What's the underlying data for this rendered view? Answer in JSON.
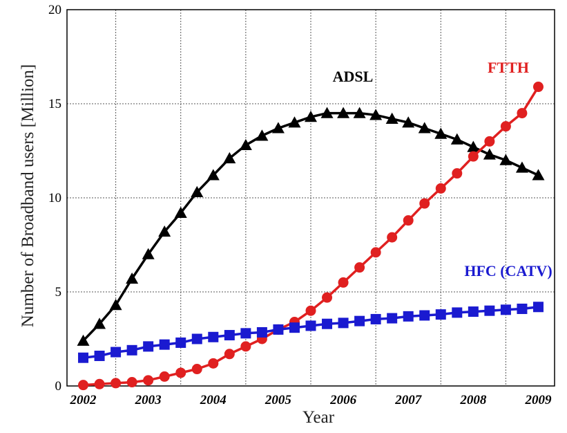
{
  "chart_data": {
    "type": "line",
    "title": "",
    "xlabel": "Year",
    "ylabel": "Number of Broadband users [Million]",
    "xlim": [
      2001.75,
      2009.25
    ],
    "ylim": [
      0,
      20
    ],
    "yticks": [
      "0",
      "5",
      "10",
      "15",
      "20"
    ],
    "xticks": [
      "2002",
      "2003",
      "2004",
      "2005",
      "2006",
      "2007",
      "2008",
      "2009"
    ],
    "grid": true,
    "series": [
      {
        "name": "ADSL",
        "color": "#000000",
        "marker": "triangle",
        "x": [
          2002.0,
          2002.25,
          2002.5,
          2002.75,
          2003.0,
          2003.25,
          2003.5,
          2003.75,
          2004.0,
          2004.25,
          2004.5,
          2004.75,
          2005.0,
          2005.25,
          2005.5,
          2005.75,
          2006.0,
          2006.25,
          2006.5,
          2006.75,
          2007.0,
          2007.25,
          2007.5,
          2007.75,
          2008.0,
          2008.25,
          2008.5,
          2008.75,
          2009.0
        ],
        "values": [
          2.4,
          3.3,
          4.3,
          5.7,
          7.0,
          8.2,
          9.2,
          10.3,
          11.2,
          12.1,
          12.8,
          13.3,
          13.7,
          14.0,
          14.3,
          14.5,
          14.5,
          14.5,
          14.4,
          14.2,
          14.0,
          13.7,
          13.4,
          13.1,
          12.7,
          12.3,
          12.0,
          11.6,
          11.2
        ]
      },
      {
        "name": "FTTH",
        "color": "#e02020",
        "marker": "circle",
        "x": [
          2002.0,
          2002.25,
          2002.5,
          2002.75,
          2003.0,
          2003.25,
          2003.5,
          2003.75,
          2004.0,
          2004.25,
          2004.5,
          2004.75,
          2005.0,
          2005.25,
          2005.5,
          2005.75,
          2006.0,
          2006.25,
          2006.5,
          2006.75,
          2007.0,
          2007.25,
          2007.5,
          2007.75,
          2008.0,
          2008.25,
          2008.5,
          2008.75,
          2009.0
        ],
        "values": [
          0.05,
          0.1,
          0.15,
          0.2,
          0.3,
          0.5,
          0.7,
          0.9,
          1.2,
          1.7,
          2.1,
          2.5,
          3.0,
          3.4,
          4.0,
          4.7,
          5.5,
          6.3,
          7.1,
          7.9,
          8.8,
          9.7,
          10.5,
          11.3,
          12.2,
          13.0,
          13.8,
          14.5,
          15.9
        ]
      },
      {
        "name": "HFC (CATV)",
        "color": "#1a1ad0",
        "marker": "square",
        "x": [
          2002.0,
          2002.25,
          2002.5,
          2002.75,
          2003.0,
          2003.25,
          2003.5,
          2003.75,
          2004.0,
          2004.25,
          2004.5,
          2004.75,
          2005.0,
          2005.25,
          2005.5,
          2005.75,
          2006.0,
          2006.25,
          2006.5,
          2006.75,
          2007.0,
          2007.25,
          2007.5,
          2007.75,
          2008.0,
          2008.25,
          2008.5,
          2008.75,
          2009.0
        ],
        "values": [
          1.5,
          1.6,
          1.8,
          1.9,
          2.1,
          2.2,
          2.3,
          2.5,
          2.6,
          2.7,
          2.8,
          2.85,
          3.0,
          3.1,
          3.2,
          3.3,
          3.35,
          3.45,
          3.55,
          3.6,
          3.7,
          3.75,
          3.8,
          3.9,
          3.95,
          4.0,
          4.05,
          4.1,
          4.2
        ]
      }
    ]
  }
}
